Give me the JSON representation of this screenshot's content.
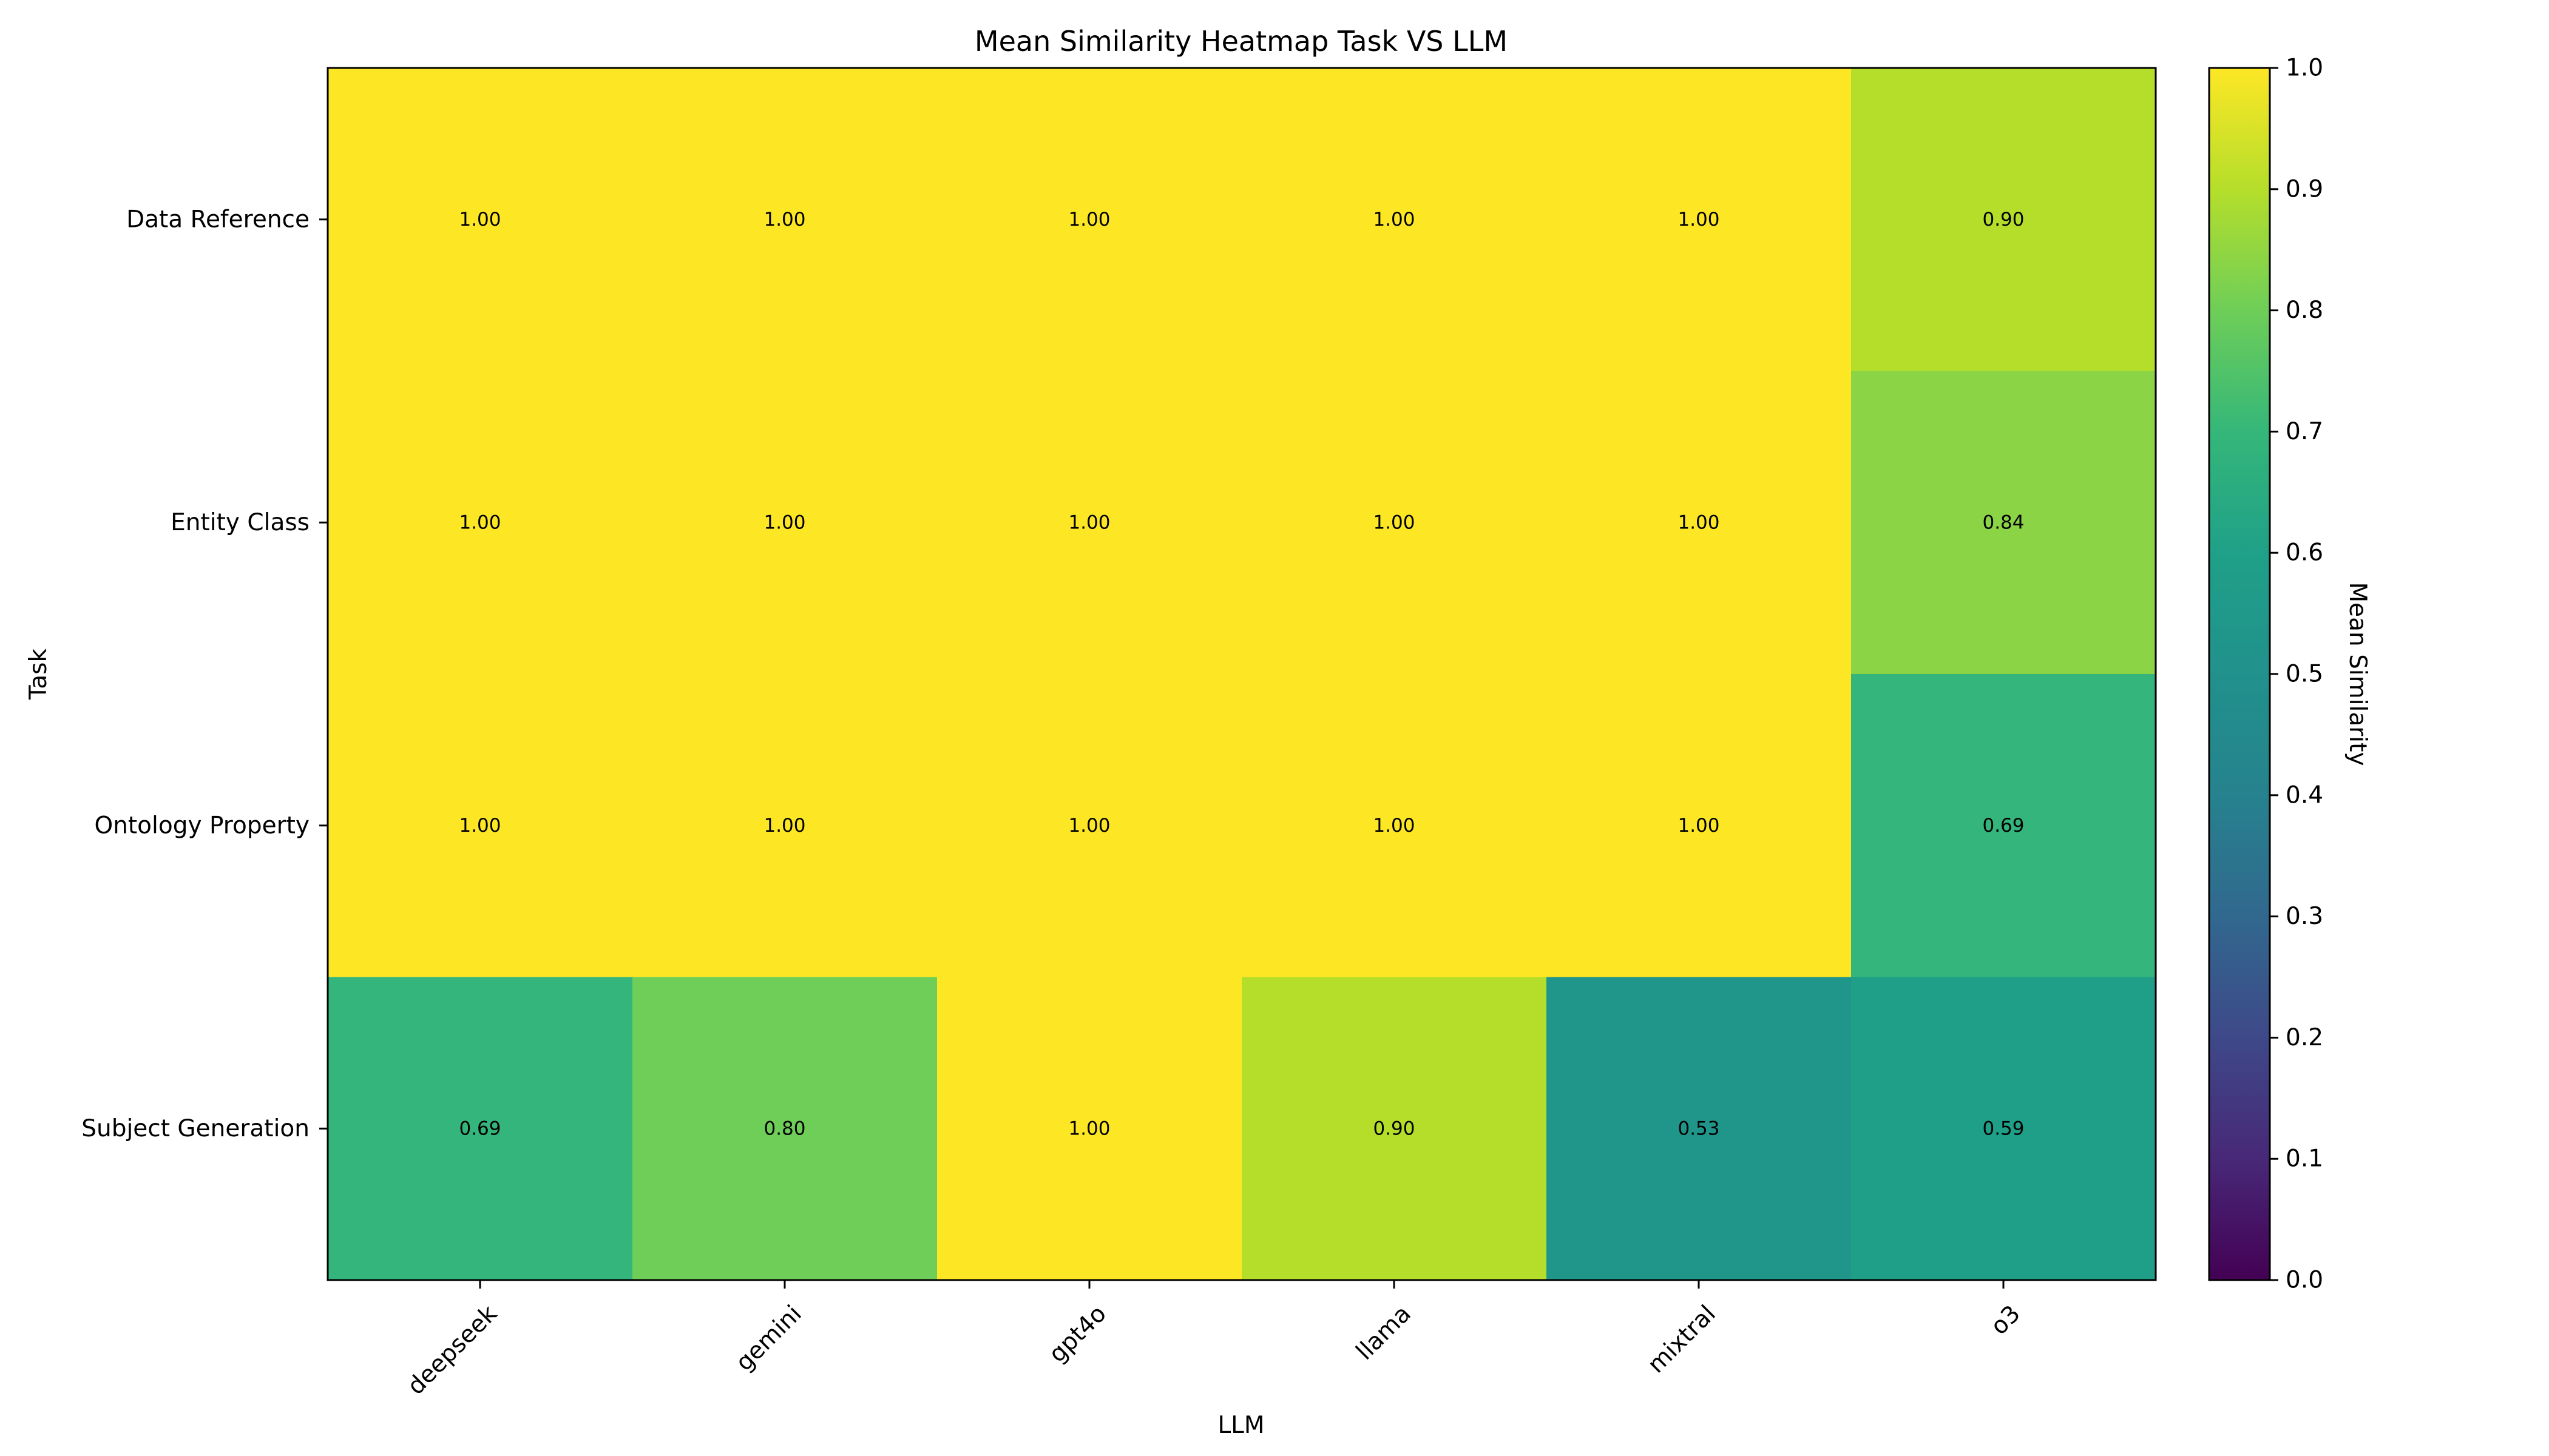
{
  "chart_data": {
    "type": "heatmap",
    "title": "Mean Similarity Heatmap Task VS LLM",
    "xlabel": "LLM",
    "ylabel": "Task",
    "x_categories": [
      "deepseek",
      "gemini",
      "gpt4o",
      "llama",
      "mixtral",
      "o3"
    ],
    "y_categories": [
      "Data Reference",
      "Entity Class",
      "Ontology Property",
      "Subject Generation"
    ],
    "values": [
      [
        1.0,
        1.0,
        1.0,
        1.0,
        1.0,
        0.9
      ],
      [
        1.0,
        1.0,
        1.0,
        1.0,
        1.0,
        0.84
      ],
      [
        1.0,
        1.0,
        1.0,
        1.0,
        1.0,
        0.69
      ],
      [
        0.69,
        0.8,
        1.0,
        0.9,
        0.53,
        0.59
      ]
    ],
    "value_format_decimals": 2,
    "colormap": "viridis",
    "colorbar": {
      "label": "Mean Similarity",
      "range": [
        0,
        1
      ],
      "ticks": [
        "0.0",
        "0.1",
        "0.2",
        "0.3",
        "0.4",
        "0.5",
        "0.6",
        "0.7",
        "0.8",
        "0.9",
        "1.0"
      ]
    },
    "grid": false
  }
}
